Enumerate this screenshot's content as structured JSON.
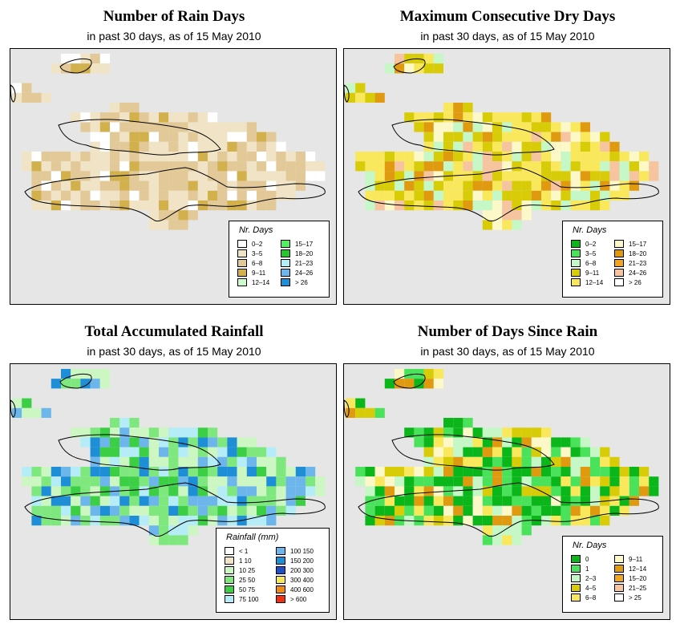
{
  "panels": [
    {
      "title": "Number of Rain Days",
      "subtitle": "in past 30 days, as of  15 May 2010",
      "legend": {
        "title": "Nr. Days",
        "items": [
          {
            "label": "0–2",
            "color": "#ffffff"
          },
          {
            "label": "3–5",
            "color": "#f1e3c5"
          },
          {
            "label": "6–8",
            "color": "#e2c997"
          },
          {
            "label": "9–11",
            "color": "#d2b04c"
          },
          {
            "label": "12–14",
            "color": "#ccfbcc"
          },
          {
            "label": "15–17",
            "color": "#54f064"
          },
          {
            "label": "18–20",
            "color": "#25c62e"
          },
          {
            "label": "21–23",
            "color": "#b4ecf8"
          },
          {
            "label": "24–26",
            "color": "#6db6ec"
          },
          {
            "label": "> 26",
            "color": "#1e8fd6"
          }
        ]
      }
    },
    {
      "title": "Maximum Consecutive Dry Days",
      "subtitle": "in past 30 days, as of  15 May 2010",
      "legend": {
        "title": "Nr. Days",
        "items": [
          {
            "label": "0–2",
            "color": "#0bb61b"
          },
          {
            "label": "3–5",
            "color": "#49e25a"
          },
          {
            "label": "6–8",
            "color": "#c6f7c6"
          },
          {
            "label": "9–11",
            "color": "#d8cc08"
          },
          {
            "label": "12–14",
            "color": "#fae85c"
          },
          {
            "label": "15–17",
            "color": "#fcf8c8"
          },
          {
            "label": "18–20",
            "color": "#e09a10"
          },
          {
            "label": "21–23",
            "color": "#f0a620"
          },
          {
            "label": "24–26",
            "color": "#f7c4a0"
          },
          {
            "label": "> 26",
            "color": "#ffffff"
          }
        ]
      }
    },
    {
      "title": "Total Accumulated Rainfall",
      "subtitle": "in past 30 days, as of  15 May 2010",
      "legend": {
        "title": "Rainfall (mm)",
        "items": [
          {
            "label": "< 1",
            "color": "#ffffff"
          },
          {
            "label": "1    10",
            "color": "#f1e3c5"
          },
          {
            "label": "10    25",
            "color": "#ccf6c2"
          },
          {
            "label": "25    50",
            "color": "#7ee87e"
          },
          {
            "label": "50    75",
            "color": "#3ccf46"
          },
          {
            "label": "75   100",
            "color": "#b4ecf8"
          },
          {
            "label": "100   150",
            "color": "#6db6ec"
          },
          {
            "label": "150   200",
            "color": "#1e8fd6"
          },
          {
            "label": "200   300",
            "color": "#1e50c8"
          },
          {
            "label": "300   400",
            "color": "#fae85c"
          },
          {
            "label": "400   600",
            "color": "#f08a10"
          },
          {
            "label": "> 600",
            "color": "#f03010"
          }
        ]
      }
    },
    {
      "title": "Number of Days Since Rain",
      "subtitle": "in past 30 days, as of  15 May 2010",
      "legend": {
        "title": "Nr. Days",
        "items": [
          {
            "label": "0",
            "color": "#0bb61b"
          },
          {
            "label": "1",
            "color": "#49e25a"
          },
          {
            "label": "2–3",
            "color": "#c6f7c6"
          },
          {
            "label": "4–5",
            "color": "#d8cc08"
          },
          {
            "label": "6–8",
            "color": "#fae85c"
          },
          {
            "label": "9–11",
            "color": "#fcf8c8"
          },
          {
            "label": "12–14",
            "color": "#e09a10"
          },
          {
            "label": "15–20",
            "color": "#f0a620"
          },
          {
            "label": "21–25",
            "color": "#f7c4a0"
          },
          {
            "label": "> 25",
            "color": "#ffffff"
          }
        ]
      }
    }
  ]
}
